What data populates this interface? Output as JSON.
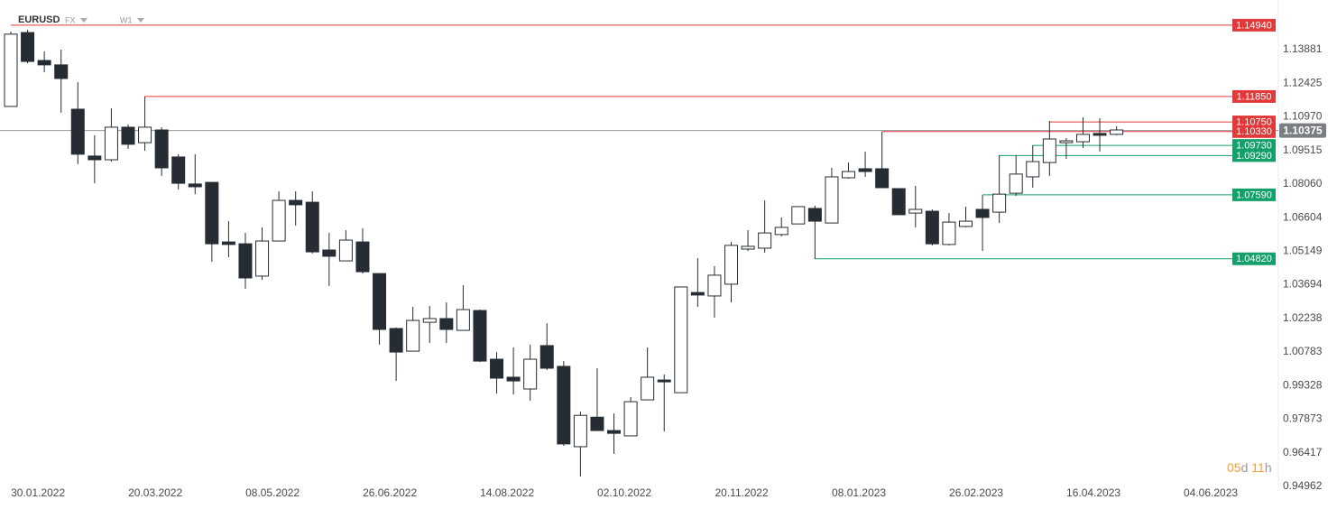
{
  "header": {
    "symbol": "EURUSD",
    "market": "FX",
    "interval": "W1"
  },
  "countdown": [
    "05",
    "d",
    "11",
    "h"
  ],
  "chart_data": {
    "type": "candlestick",
    "x": [
      "2022-01-16",
      "2022-01-23",
      "2022-01-30",
      "2022-02-06",
      "2022-02-13",
      "2022-02-20",
      "2022-02-27",
      "2022-03-06",
      "2022-03-13",
      "2022-03-20",
      "2022-03-27",
      "2022-04-03",
      "2022-04-10",
      "2022-04-17",
      "2022-04-24",
      "2022-05-01",
      "2022-05-08",
      "2022-05-15",
      "2022-05-22",
      "2022-05-29",
      "2022-06-05",
      "2022-06-12",
      "2022-06-19",
      "2022-06-26",
      "2022-07-03",
      "2022-07-10",
      "2022-07-17",
      "2022-07-24",
      "2022-07-31",
      "2022-08-07",
      "2022-08-14",
      "2022-08-21",
      "2022-08-28",
      "2022-09-04",
      "2022-09-11",
      "2022-09-18",
      "2022-09-25",
      "2022-10-02",
      "2022-10-09",
      "2022-10-16",
      "2022-10-23",
      "2022-10-30",
      "2022-11-06",
      "2022-11-13",
      "2022-11-20",
      "2022-11-27",
      "2022-12-04",
      "2022-12-11",
      "2022-12-18",
      "2022-12-25",
      "2023-01-01",
      "2023-01-08",
      "2023-01-15",
      "2023-01-22",
      "2023-01-29",
      "2023-02-05",
      "2023-02-12",
      "2023-02-19",
      "2023-02-26",
      "2023-03-05",
      "2023-03-12",
      "2023-03-19",
      "2023-03-26",
      "2023-04-02",
      "2023-04-09",
      "2023-04-16",
      "2023-04-23"
    ],
    "open": [
      1.1142,
      1.1462,
      1.1341,
      1.1322,
      1.113,
      1.0927,
      1.0911,
      1.1052,
      1.0985,
      1.104,
      1.0923,
      1.0806,
      1.0813,
      1.0555,
      1.0547,
      1.0407,
      1.0559,
      1.0735,
      1.0727,
      1.052,
      1.0473,
      1.0555,
      1.0418,
      1.018,
      1.0082,
      1.0207,
      1.0223,
      1.0172,
      1.0258,
      1.0047,
      0.9969,
      0.9918,
      1.0106,
      1.0016,
      0.9668,
      0.9796,
      0.9738,
      0.9715,
      0.9871,
      0.9957,
      0.9902,
      1.0336,
      1.0321,
      1.0372,
      1.0524,
      1.0528,
      1.0587,
      1.0633,
      1.07,
      1.0637,
      1.0833,
      1.0872,
      1.0872,
      1.0786,
      1.068,
      1.0688,
      1.0544,
      1.0622,
      1.0696,
      1.0684,
      1.0766,
      1.0837,
      1.0899,
      1.0985,
      1.0989,
      1.1025,
      1.1021
    ],
    "high": [
      1.1466,
      1.1474,
      1.138,
      1.1388,
      1.1247,
      1.1017,
      1.1134,
      1.1064,
      1.1185,
      1.1052,
      1.0935,
      1.0935,
      1.0813,
      1.0645,
      1.0594,
      1.0618,
      1.0774,
      1.0774,
      1.0774,
      1.0594,
      1.0606,
      1.0614,
      1.0418,
      1.0184,
      1.0274,
      1.0278,
      1.0293,
      1.0368,
      1.0262,
      1.0078,
      1.0098,
      1.011,
      1.0203,
      1.0039,
      0.982,
      1.0008,
      0.9812,
      0.9883,
      1.0098,
      0.9981,
      1.036,
      1.0485,
      1.045,
      1.0555,
      1.0606,
      1.0735,
      1.0661,
      1.0708,
      1.0712,
      1.0876,
      1.0899,
      1.0946,
      1.1032,
      1.0786,
      1.0798,
      1.0696,
      1.068,
      1.0708,
      1.0758,
      1.0931,
      1.0931,
      1.0974,
      1.1079,
      1.1005,
      1.1095,
      1.1091,
      1.1056
    ],
    "low": [
      1.1142,
      1.1329,
      1.129,
      1.1115,
      1.0892,
      1.0809,
      1.0903,
      1.0958,
      1.095,
      1.0841,
      1.0782,
      1.0762,
      1.0469,
      1.0489,
      1.0352,
      1.0391,
      1.0559,
      1.0626,
      1.0505,
      1.0364,
      1.0473,
      1.0418,
      1.011,
      0.9953,
      1.0082,
      1.0118,
      1.0118,
      1.0172,
      1.0035,
      0.9898,
      0.9894,
      0.9867,
      1.0,
      0.9672,
      0.9539,
      0.9738,
      0.9637,
      0.9715,
      0.9871,
      0.9734,
      0.9902,
      1.0274,
      1.0227,
      1.0293,
      1.0516,
      1.0508,
      1.0579,
      1.0633,
      1.0481,
      1.0637,
      1.0829,
      1.0837,
      1.079,
      1.0673,
      1.0618,
      1.054,
      1.054,
      1.0618,
      1.0516,
      1.0637,
      1.0755,
      1.079,
      1.0841,
      1.0915,
      1.0962,
      1.0946,
      1.1017
    ],
    "close": [
      1.1455,
      1.1337,
      1.1322,
      1.1263,
      1.0935,
      1.0911,
      1.1052,
      1.0978,
      1.1052,
      1.0876,
      1.0809,
      1.0794,
      1.0547,
      1.0544,
      1.0399,
      1.0559,
      1.0735,
      1.0716,
      1.0512,
      1.0493,
      1.0563,
      1.0426,
      1.0176,
      1.0078,
      1.0215,
      1.0223,
      1.0176,
      1.0262,
      1.0039,
      0.9965,
      0.9953,
      1.0047,
      1.0008,
      0.968,
      0.9804,
      0.9738,
      0.9726,
      0.9863,
      0.9969,
      0.9949,
      1.036,
      1.0325,
      1.0411,
      1.054,
      1.0536,
      1.0594,
      1.0618,
      1.0708,
      1.0645,
      1.0837,
      1.086,
      1.086,
      1.079,
      1.0673,
      1.0696,
      1.0547,
      1.0641,
      1.0645,
      1.0661,
      1.0762,
      1.0849,
      1.0903,
      1.1001,
      1.0993,
      1.1021,
      1.1017,
      1.104
    ],
    "up_color": "#ffffff",
    "down_color": "#262c33",
    "ylim": [
      0.9492,
      1.1603
    ],
    "yticks": [
      1.13881,
      1.12425,
      {
        "value": 1.1097,
        "label": "1.10970"
      },
      1.09515,
      {
        "value": 1.0806,
        "label": "1.08060"
      },
      1.06604,
      1.05149,
      1.03694,
      1.02238,
      1.00783,
      0.99328,
      0.97873,
      0.96417,
      0.94962
    ],
    "xticks": [
      {
        "value": "2022-01-30",
        "label": "30.01.2022"
      },
      {
        "value": "2022-03-20",
        "label": "20.03.2022"
      },
      {
        "value": "2022-05-08",
        "label": "08.05.2022"
      },
      {
        "value": "2022-06-26",
        "label": "26.06.2022"
      },
      {
        "value": "2022-08-14",
        "label": "14.08.2022"
      },
      {
        "value": "2022-10-02",
        "label": "02.10.2022"
      },
      {
        "value": "2022-11-20",
        "label": "20.11.2022"
      },
      {
        "value": "2023-01-08",
        "label": "08.01.2023"
      },
      {
        "value": "2023-02-26",
        "label": "26.02.2023"
      },
      {
        "value": "2023-04-16",
        "label": "16.04.2023"
      },
      {
        "value": "2023-06-04",
        "label": "04.06.2023"
      }
    ],
    "last_price": 1.10375,
    "last_price_color": "#7a7e82",
    "levels": [
      {
        "value": 1.1494,
        "label": "1.14940",
        "color": "#e23a3a",
        "from": "2022-01-16"
      },
      {
        "value": 1.1185,
        "label": "1.11850",
        "color": "#e23a3a",
        "from": "2022-03-13"
      },
      {
        "value": 1.1075,
        "label": "1.10750",
        "color": "#e23a3a",
        "from": "2023-03-26"
      },
      {
        "value": 1.1033,
        "label": "1.10330",
        "color": "#e23a3a",
        "from": "2023-01-15"
      },
      {
        "value": 1.0973,
        "label": "1.09730",
        "color": "#14a06a",
        "from": "2023-03-19"
      },
      {
        "value": 1.0929,
        "label": "1.09290",
        "color": "#14a06a",
        "from": "2023-03-05"
      },
      {
        "value": 1.0759,
        "label": "1.07590",
        "color": "#14a06a",
        "from": "2023-02-26"
      },
      {
        "value": 1.0482,
        "label": "1.04820",
        "color": "#14a06a",
        "from": "2022-12-18"
      }
    ]
  }
}
